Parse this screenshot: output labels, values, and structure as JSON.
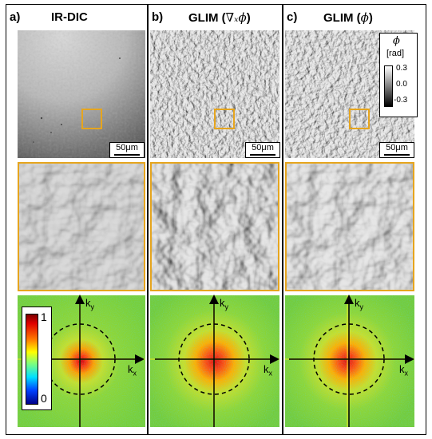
{
  "columns": [
    {
      "letter": "a)",
      "title": "IR-DIC",
      "title_math": ""
    },
    {
      "letter": "b)",
      "title": "GLIM (",
      "title_math": "∇ₓϕ",
      "title_end": ")"
    },
    {
      "letter": "c)",
      "title": "GLIM (",
      "title_math": "ϕ",
      "title_end": ")"
    }
  ],
  "scale_bar_label": "50μm",
  "k_axis": {
    "kx": "k",
    "kx_sub": "x",
    "ky": "k",
    "ky_sub": "y"
  },
  "spectrum_colorbar": {
    "max_label": "1",
    "min_label": "0"
  },
  "phase_legend": {
    "symbol": "ϕ",
    "unit": "[rad]",
    "ticks": [
      "0.3",
      "0.0",
      "-0.3"
    ]
  },
  "colors": {
    "roi": "#e6a51e",
    "frame": "#000000"
  }
}
